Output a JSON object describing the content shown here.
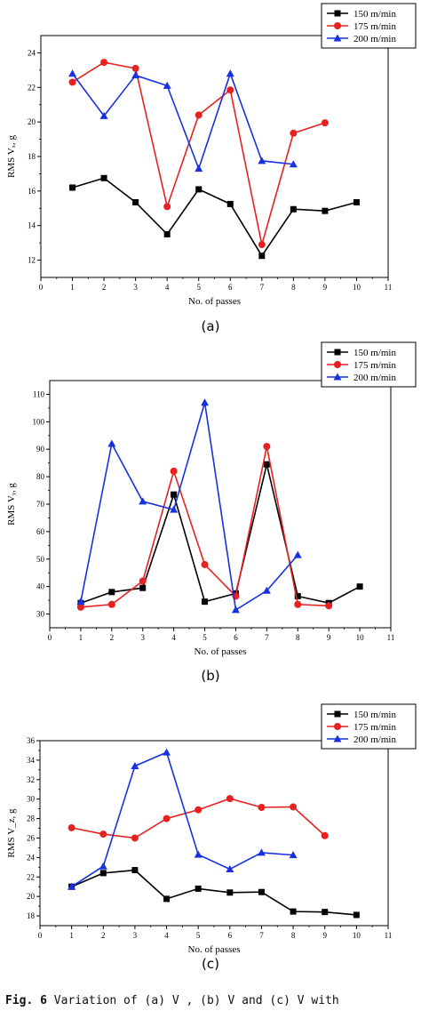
{
  "caption": {
    "fig_label": "Fig. 6",
    "text": " Variation of (a) V , (b) V  and (c) V  with"
  },
  "chart_data": [
    {
      "type": "line",
      "panel_label": "(a)",
      "xlabel": "No. of passes",
      "ylabel": "RMS Vₓ, g",
      "xlim": [
        0,
        11
      ],
      "ylim": [
        11,
        25
      ],
      "xticks": [
        0,
        1,
        2,
        3,
        4,
        5,
        6,
        7,
        8,
        9,
        10,
        11
      ],
      "yticks": [
        12,
        14,
        16,
        18,
        20,
        22,
        24
      ],
      "legend_position": "top-right",
      "series": [
        {
          "name": "150 m/min",
          "color": "#000000",
          "marker": "square",
          "x": [
            1,
            2,
            3,
            4,
            5,
            6,
            7,
            8,
            9,
            10
          ],
          "values": [
            16.2,
            16.75,
            15.35,
            13.5,
            16.1,
            15.25,
            12.25,
            14.95,
            14.85,
            15.35
          ]
        },
        {
          "name": "175 m/min",
          "color": "#e8201f",
          "marker": "circle",
          "x": [
            1,
            2,
            3,
            4,
            5,
            6,
            7,
            8,
            9
          ],
          "values": [
            22.3,
            23.45,
            23.1,
            15.1,
            20.4,
            21.85,
            12.9,
            19.35,
            19.95
          ]
        },
        {
          "name": "200 m/min",
          "color": "#1730e0",
          "marker": "triangle",
          "x": [
            1,
            2,
            3,
            4,
            5,
            6,
            7,
            8
          ],
          "values": [
            22.8,
            20.35,
            22.7,
            22.1,
            17.3,
            22.8,
            17.75,
            17.55
          ]
        }
      ]
    },
    {
      "type": "line",
      "panel_label": "(b)",
      "xlabel": "No. of passes",
      "ylabel": "RMS Vᵧ, g",
      "xlim": [
        0,
        11
      ],
      "ylim": [
        25,
        115
      ],
      "xticks": [
        0,
        1,
        2,
        3,
        4,
        5,
        6,
        7,
        8,
        9,
        10,
        11
      ],
      "yticks": [
        30,
        40,
        50,
        60,
        70,
        80,
        90,
        100,
        110
      ],
      "legend_position": "top-right",
      "series": [
        {
          "name": "150 m/min",
          "color": "#000000",
          "marker": "square",
          "x": [
            1,
            2,
            3,
            4,
            5,
            6,
            7,
            8,
            9,
            10
          ],
          "values": [
            34,
            38,
            39.5,
            73.5,
            34.5,
            37.5,
            84.5,
            36.5,
            34,
            40
          ]
        },
        {
          "name": "175 m/min",
          "color": "#e8201f",
          "marker": "circle",
          "x": [
            1,
            2,
            3,
            4,
            5,
            6,
            7,
            8,
            9
          ],
          "values": [
            32.5,
            33.5,
            42,
            82,
            48,
            36.5,
            91,
            33.5,
            33
          ]
        },
        {
          "name": "200 m/min",
          "color": "#1730e0",
          "marker": "triangle",
          "x": [
            1,
            2,
            3,
            4,
            5,
            6,
            7,
            8
          ],
          "values": [
            34.5,
            92,
            71,
            68,
            107,
            31.5,
            38.5,
            51.5
          ]
        }
      ]
    },
    {
      "type": "line",
      "panel_label": "(c)",
      "xlabel": "No. of passes",
      "ylabel": "RMS V_z, g",
      "xlim": [
        0,
        11
      ],
      "ylim": [
        17,
        36
      ],
      "xticks": [
        0,
        1,
        2,
        3,
        4,
        5,
        6,
        7,
        8,
        9,
        10,
        11
      ],
      "yticks": [
        18,
        20,
        22,
        24,
        26,
        28,
        30,
        32,
        34,
        36
      ],
      "legend_position": "top-right",
      "series": [
        {
          "name": "150 m/min",
          "color": "#000000",
          "marker": "square",
          "x": [
            1,
            2,
            3,
            4,
            5,
            6,
            7,
            8,
            9,
            10
          ],
          "values": [
            21.0,
            22.4,
            22.7,
            19.75,
            20.8,
            20.4,
            20.45,
            18.45,
            18.4,
            18.1
          ]
        },
        {
          "name": "175 m/min",
          "color": "#e8201f",
          "marker": "circle",
          "x": [
            1,
            2,
            3,
            4,
            5,
            6,
            7,
            8,
            9
          ],
          "values": [
            27.05,
            26.4,
            26.0,
            28.0,
            28.9,
            30.05,
            29.15,
            29.2,
            26.25
          ]
        },
        {
          "name": "200 m/min",
          "color": "#1730e0",
          "marker": "triangle",
          "x": [
            1,
            2,
            3,
            4,
            5,
            6,
            7,
            8
          ],
          "values": [
            21.0,
            23.1,
            33.4,
            34.8,
            24.3,
            22.8,
            24.5,
            24.25
          ]
        }
      ]
    }
  ]
}
